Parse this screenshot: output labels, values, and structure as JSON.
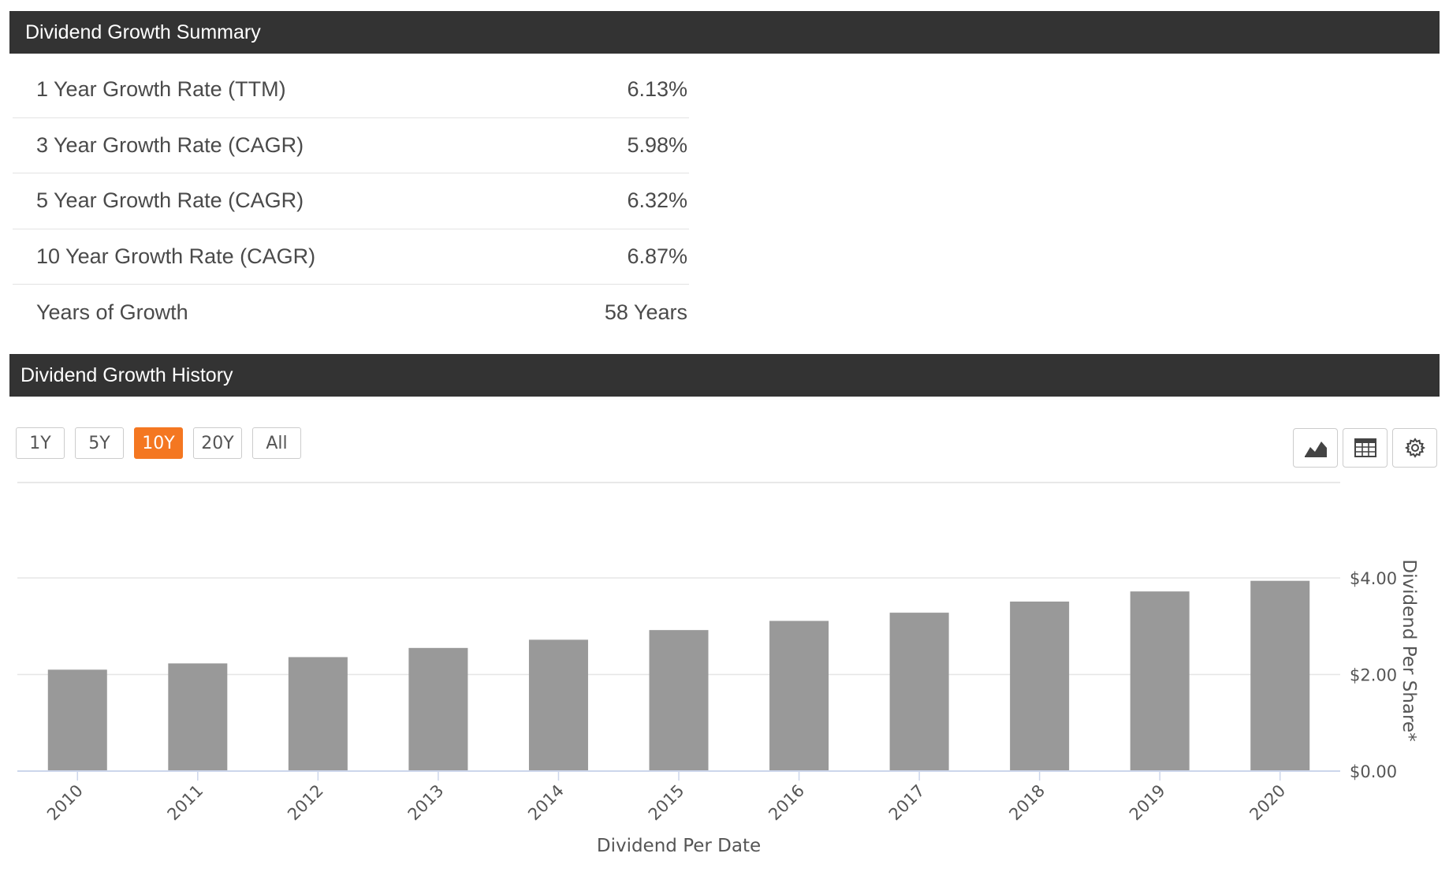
{
  "summary": {
    "title": "Dividend Growth Summary",
    "rows": [
      {
        "label": "1 Year Growth Rate (TTM)",
        "value": "6.13%"
      },
      {
        "label": "3 Year Growth Rate (CAGR)",
        "value": "5.98%"
      },
      {
        "label": "5 Year Growth Rate (CAGR)",
        "value": "6.32%"
      },
      {
        "label": "10 Year Growth Rate (CAGR)",
        "value": "6.87%"
      },
      {
        "label": "Years of Growth",
        "value": "58 Years"
      }
    ]
  },
  "history": {
    "title": "Dividend Growth History",
    "ranges": [
      "1Y",
      "5Y",
      "10Y",
      "20Y",
      "All"
    ],
    "active_range": "10Y",
    "tools": [
      "area-chart-icon",
      "table-icon",
      "gear-icon"
    ],
    "accent_color": "#f47721"
  },
  "chart_data": {
    "type": "bar",
    "categories": [
      "2010",
      "2011",
      "2012",
      "2013",
      "2014",
      "2015",
      "2016",
      "2017",
      "2018",
      "2019",
      "2020"
    ],
    "values": [
      2.1,
      2.23,
      2.36,
      2.55,
      2.72,
      2.92,
      3.11,
      3.28,
      3.51,
      3.72,
      3.94
    ],
    "xlabel": "Dividend Per Date",
    "ylabel": "Dividend Per Share*",
    "y_ticks": [
      "$0.00",
      "$2.00",
      "$4.00"
    ],
    "y_tick_values": [
      0,
      2,
      4
    ],
    "ylim": [
      0,
      6
    ],
    "bar_color": "#999999",
    "grid": true,
    "axis_side": "right"
  }
}
